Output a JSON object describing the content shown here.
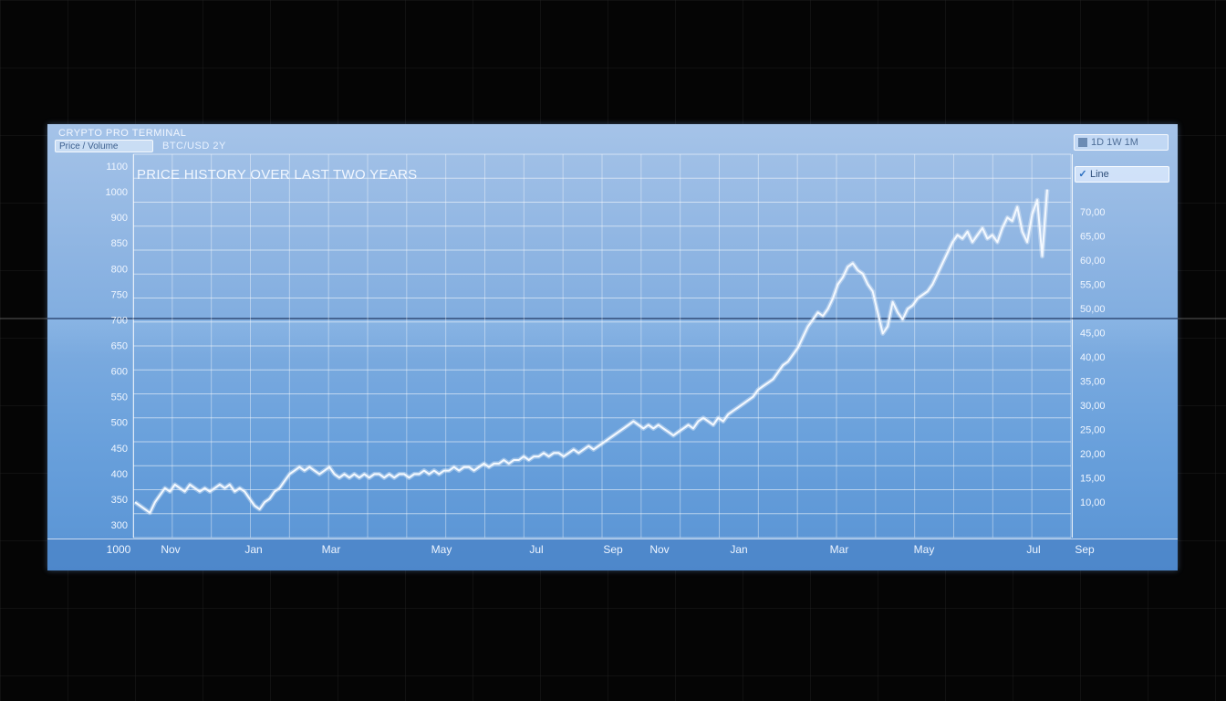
{
  "window": {
    "app_title": "CRYPTO PRO TERMINAL",
    "tab_label": "Price / Volume",
    "symbol_label": "BTC/USD 2Y",
    "top_right_control": "1D  1W  1M",
    "side_dropdown": "Line"
  },
  "colors": {
    "screen_top": "#a5c3e8",
    "screen_bottom": "#5893d4",
    "line": "#f4f9ff",
    "grid": "#ffffff"
  },
  "chart_data": {
    "type": "line",
    "title": "PRICE HISTORY OVER LAST TWO YEARS",
    "ylabel_left": "",
    "ylim": [
      0,
      100
    ],
    "left_ticks": [
      "1100",
      "1000",
      "900",
      "850",
      "800",
      "750",
      "700",
      "650",
      "600",
      "550",
      "500",
      "450",
      "400",
      "350",
      "300"
    ],
    "right_ticks": [
      "70,00",
      "65,00",
      "60,00",
      "55,00",
      "50,00",
      "45,00",
      "40,00",
      "35,00",
      "30,00",
      "25,00",
      "20,00",
      "15,00",
      "10,00"
    ],
    "x_ticks": [
      "1000",
      "Nov",
      "Jan",
      "Mar",
      "May",
      "Jul",
      "Sep",
      "Nov",
      "Jan",
      "Mar",
      "May",
      "Jul",
      "Sep"
    ],
    "grid": true,
    "series": [
      {
        "values": [
          8,
          7,
          6,
          5,
          8,
          10,
          12,
          11,
          13,
          12,
          11,
          13,
          12,
          11,
          12,
          11,
          12,
          13,
          12,
          13,
          11,
          12,
          11,
          9,
          7,
          6,
          8,
          9,
          11,
          12,
          14,
          16,
          17,
          18,
          17,
          18,
          17,
          16,
          17,
          18,
          16,
          15,
          16,
          15,
          16,
          15,
          16,
          15,
          16,
          16,
          15,
          16,
          15,
          16,
          16,
          15,
          16,
          16,
          17,
          16,
          17,
          16,
          17,
          17,
          18,
          17,
          18,
          18,
          17,
          18,
          19,
          18,
          19,
          19,
          20,
          19,
          20,
          20,
          21,
          20,
          21,
          21,
          22,
          21,
          22,
          22,
          21,
          22,
          23,
          22,
          23,
          24,
          23,
          24,
          25,
          26,
          27,
          28,
          29,
          30,
          31,
          30,
          29,
          30,
          29,
          30,
          29,
          28,
          27,
          28,
          29,
          30,
          29,
          31,
          32,
          31,
          30,
          32,
          31,
          33,
          34,
          35,
          36,
          37,
          38,
          40,
          41,
          42,
          43,
          45,
          47,
          48,
          50,
          52,
          55,
          58,
          60,
          62,
          61,
          63,
          66,
          70,
          72,
          75,
          76,
          74,
          73,
          70,
          68,
          62,
          56,
          58,
          65,
          62,
          60,
          63,
          64,
          66,
          67,
          68,
          70,
          73,
          76,
          79,
          82,
          84,
          83,
          85,
          82,
          84,
          86,
          83,
          84,
          82,
          86,
          89,
          88,
          92,
          85,
          82,
          90,
          94,
          78,
          97
        ]
      }
    ]
  }
}
